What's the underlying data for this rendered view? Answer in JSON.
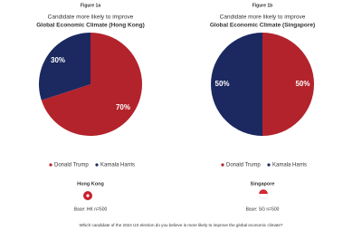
{
  "chart_data": [
    {
      "type": "pie",
      "figure_label": "Figure 1a",
      "subtitle": "Candidate more likely to improve",
      "title": "Global Economic Climate (Hong Kong)",
      "categories": [
        "Donald Trump",
        "Kamala Harris"
      ],
      "values": [
        70,
        30
      ],
      "value_labels": [
        "70%",
        "30%"
      ],
      "colors": [
        "#b3232c",
        "#1b2960"
      ],
      "location": "Hong Kong",
      "base": "Base: HK n=500"
    },
    {
      "type": "pie",
      "figure_label": "Figure 1b",
      "subtitle": "Candidate more likely to improve",
      "title": "Global Economic Climate (Singapore)",
      "categories": [
        "Donald Trump",
        "Kamala Harris"
      ],
      "values": [
        50,
        50
      ],
      "value_labels": [
        "50%",
        "50%"
      ],
      "colors": [
        "#b3232c",
        "#1b2960"
      ],
      "location": "Singapore",
      "base": "Base: SG n=500"
    }
  ],
  "footnote": "Which candidate of the 2024 US election do you believe is more likely to improve the global economic climate?"
}
